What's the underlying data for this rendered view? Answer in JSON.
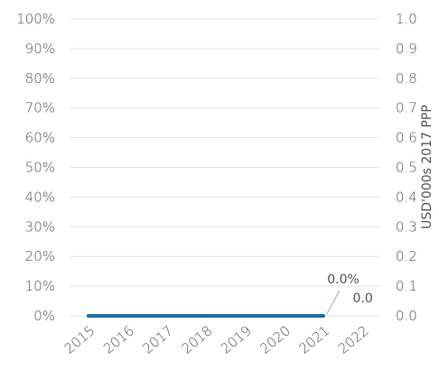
{
  "chart_data": {
    "type": "line",
    "categories": [
      "2015",
      "2016",
      "2017",
      "2018",
      "2019",
      "2020",
      "2021",
      "2022"
    ],
    "series": [
      {
        "axis": "right",
        "color": "#1f6ea8",
        "values": [
          0.0,
          0.0,
          0.0,
          0.0,
          0.0,
          0.0,
          0.0,
          null
        ]
      }
    ],
    "y_left": {
      "ticks": [
        "0%",
        "10%",
        "20%",
        "30%",
        "40%",
        "50%",
        "60%",
        "70%",
        "80%",
        "90%",
        "100%"
      ],
      "min": 0,
      "max": 100
    },
    "y_right": {
      "ticks": [
        "0.0",
        "0.1",
        "0.2",
        "0.3",
        "0.4",
        "0.5",
        "0.6",
        "0.7",
        "0.8",
        "0.9",
        "1.0"
      ],
      "min": 0,
      "max": 1.0,
      "label": "USD'000s 2017 PPP"
    },
    "annotations": [
      {
        "text": "0.0%",
        "category": "2021"
      },
      {
        "text": "0.0",
        "category": "2021"
      }
    ],
    "grid": true,
    "title": "",
    "xlabel": ""
  }
}
